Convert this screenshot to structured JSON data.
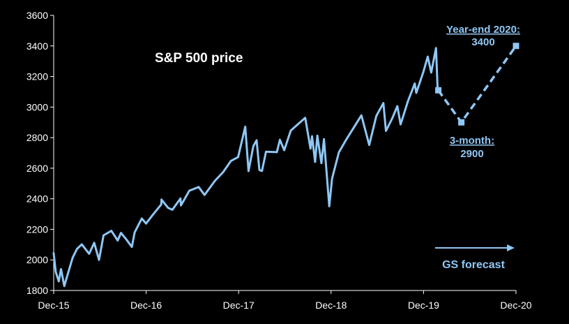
{
  "colors": {
    "background": "#000000",
    "axis": "#ffffff",
    "series": "#8fc7f5",
    "forecast_text": "#8fc7f5",
    "title_text": "#ffffff"
  },
  "chart_data": {
    "type": "line",
    "title": "S&P 500 price",
    "xlabel": "",
    "ylabel": "",
    "ylim": [
      1800,
      3600
    ],
    "yticks": [
      "1800",
      "2000",
      "2200",
      "2400",
      "2600",
      "2800",
      "3000",
      "3200",
      "3400",
      "3600"
    ],
    "xtick_labels": [
      "Dec-15",
      "Dec-16",
      "Dec-17",
      "Dec-18",
      "Dec-19",
      "Dec-20"
    ],
    "grid": false,
    "legend": "none",
    "series": [
      {
        "style": "solid",
        "points": [
          [
            "2015-12-31",
            2044
          ],
          [
            "2016-01-08",
            1922
          ],
          [
            "2016-01-20",
            1860
          ],
          [
            "2016-01-29",
            1940
          ],
          [
            "2016-02-11",
            1829
          ],
          [
            "2016-02-29",
            1932
          ],
          [
            "2016-03-15",
            2015
          ],
          [
            "2016-04-01",
            2072
          ],
          [
            "2016-04-20",
            2102
          ],
          [
            "2016-05-19",
            2040
          ],
          [
            "2016-06-08",
            2112
          ],
          [
            "2016-06-27",
            2000
          ],
          [
            "2016-07-15",
            2161
          ],
          [
            "2016-08-15",
            2190
          ],
          [
            "2016-09-09",
            2127
          ],
          [
            "2016-09-22",
            2177
          ],
          [
            "2016-10-14",
            2132
          ],
          [
            "2016-11-04",
            2085
          ],
          [
            "2016-11-15",
            2180
          ],
          [
            "2016-12-13",
            2271
          ],
          [
            "2016-12-30",
            2238
          ],
          [
            "2017-01-26",
            2296
          ],
          [
            "2017-02-28",
            2363
          ],
          [
            "2017-03-01",
            2395
          ],
          [
            "2017-03-27",
            2341
          ],
          [
            "2017-04-13",
            2328
          ],
          [
            "2017-05-15",
            2402
          ],
          [
            "2017-05-17",
            2357
          ],
          [
            "2017-06-19",
            2453
          ],
          [
            "2017-07-26",
            2477
          ],
          [
            "2017-08-18",
            2425
          ],
          [
            "2017-09-29",
            2519
          ],
          [
            "2017-10-31",
            2575
          ],
          [
            "2017-11-30",
            2647
          ],
          [
            "2017-12-29",
            2673
          ],
          [
            "2018-01-26",
            2872
          ],
          [
            "2018-02-08",
            2581
          ],
          [
            "2018-02-27",
            2744
          ],
          [
            "2018-03-12",
            2783
          ],
          [
            "2018-03-23",
            2588
          ],
          [
            "2018-04-02",
            2582
          ],
          [
            "2018-04-18",
            2708
          ],
          [
            "2018-05-31",
            2705
          ],
          [
            "2018-06-12",
            2786
          ],
          [
            "2018-06-29",
            2718
          ],
          [
            "2018-07-25",
            2846
          ],
          [
            "2018-08-31",
            2901
          ],
          [
            "2018-09-20",
            2930
          ],
          [
            "2018-10-11",
            2728
          ],
          [
            "2018-10-17",
            2809
          ],
          [
            "2018-10-29",
            2641
          ],
          [
            "2018-11-07",
            2813
          ],
          [
            "2018-11-23",
            2633
          ],
          [
            "2018-12-03",
            2790
          ],
          [
            "2018-12-24",
            2351
          ],
          [
            "2019-01-04",
            2532
          ],
          [
            "2019-01-31",
            2704
          ],
          [
            "2019-02-28",
            2784
          ],
          [
            "2019-04-30",
            2946
          ],
          [
            "2019-05-31",
            2752
          ],
          [
            "2019-06-28",
            2942
          ],
          [
            "2019-07-26",
            3026
          ],
          [
            "2019-08-05",
            2844
          ],
          [
            "2019-08-30",
            2926
          ],
          [
            "2019-09-19",
            3006
          ],
          [
            "2019-10-02",
            2887
          ],
          [
            "2019-10-31",
            3038
          ],
          [
            "2019-11-27",
            3154
          ],
          [
            "2019-12-03",
            3093
          ],
          [
            "2019-12-31",
            3231
          ],
          [
            "2020-01-17",
            3330
          ],
          [
            "2020-01-31",
            3226
          ],
          [
            "2020-02-19",
            3386
          ],
          [
            "2020-02-25",
            3128
          ],
          [
            "2020-02-28",
            3110
          ]
        ]
      },
      {
        "style": "dashed",
        "points": [
          [
            "2020-02-28",
            3110
          ],
          [
            "2020-05-29",
            2900
          ],
          [
            "2020-12-31",
            3400
          ]
        ]
      }
    ],
    "annotations": {
      "year_end_label": "Year-end 2020:",
      "year_end_value": "3400",
      "three_month_label": "3-month:",
      "three_month_value": "2900",
      "forecast_label": "GS forecast"
    }
  }
}
